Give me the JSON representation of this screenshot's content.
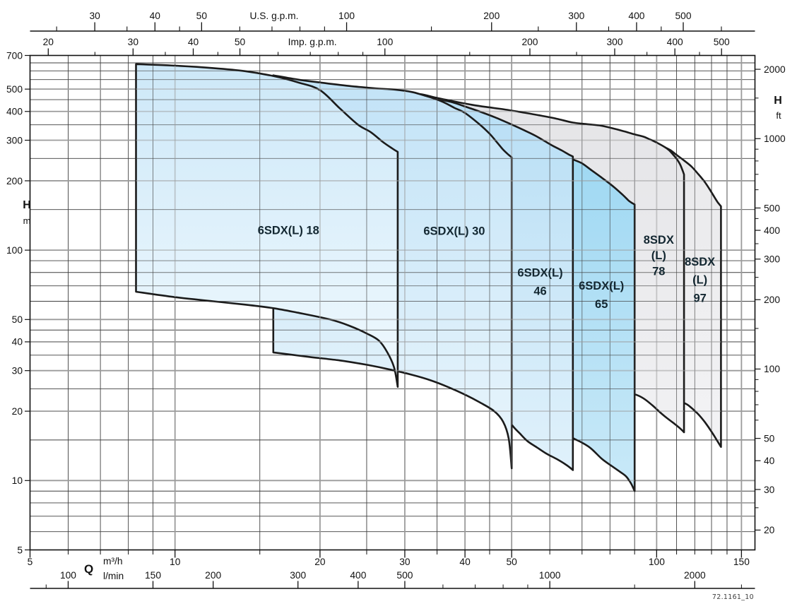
{
  "watermark": "72.1161_10",
  "colors": {
    "outline": "#1b1b1b",
    "grid_minor": "#3f3f3f",
    "grid_major": "#9b9b9b",
    "frame": "#111111",
    "axis_text": "#111111",
    "pump_label_text": "#132731",
    "watermark_text": "#3f3f3f"
  },
  "chart_data": {
    "type": "area",
    "description": "Pump operating-range envelopes on log-log axes (flow vs head)",
    "x_axis_m3h": {
      "quantity_label": "Q",
      "unit": "m³/h",
      "min": 5,
      "max": 160,
      "labeled_ticks": [
        5,
        10,
        20,
        30,
        40,
        50,
        100,
        150
      ],
      "minor_ticks": [
        6,
        7,
        8,
        9,
        15,
        25,
        35,
        45,
        60,
        70,
        80,
        90,
        110,
        120,
        130,
        140
      ],
      "major_gridlines": [
        10,
        20,
        30,
        40,
        50,
        100,
        150
      ],
      "minor_gridlines": [
        6,
        7,
        8,
        9,
        15,
        25,
        35,
        45,
        60,
        70,
        80,
        90,
        110,
        120,
        130,
        140
      ]
    },
    "x_axis_lmin": {
      "unit": "l/min",
      "labeled_ticks": [
        100,
        150,
        200,
        300,
        400,
        500,
        1000,
        2000
      ],
      "minor_ticks": [
        90,
        600,
        700,
        800,
        900,
        1500,
        2500
      ]
    },
    "x_axis_usgpm": {
      "unit": "U.S. g.p.m.",
      "labeled_ticks": [
        30,
        40,
        50,
        100,
        200,
        300,
        400,
        500
      ],
      "minor_ticks": [
        25,
        35,
        45,
        60,
        70,
        80,
        90,
        150,
        250,
        350,
        450,
        600
      ]
    },
    "x_axis_impgpm": {
      "unit": "Imp. g.p.m.",
      "labeled_ticks": [
        20,
        30,
        40,
        50,
        100,
        200,
        300,
        400,
        500
      ],
      "minor_ticks": [
        25,
        35,
        45,
        60,
        70,
        80,
        90,
        150,
        250,
        350,
        450
      ]
    },
    "y_axis_m": {
      "quantity_label": "H",
      "unit": "m",
      "min": 5,
      "max": 700,
      "labeled_ticks": [
        5,
        10,
        20,
        30,
        40,
        50,
        100,
        200,
        300,
        400,
        500,
        700
      ],
      "major_gridlines": [
        10,
        20,
        30,
        40,
        50,
        100,
        200,
        300,
        400,
        500
      ],
      "minor_gridlines": [
        6,
        7,
        8,
        9,
        15,
        25,
        35,
        45,
        60,
        70,
        80,
        90,
        150,
        250,
        350,
        450,
        550,
        600,
        650
      ]
    },
    "y_axis_ft": {
      "quantity_label": "H",
      "unit": "ft",
      "labeled_ticks": [
        20,
        30,
        40,
        50,
        100,
        200,
        300,
        400,
        500,
        1000,
        2000
      ],
      "minor_ticks": [
        25,
        60,
        70,
        80,
        90,
        150,
        250,
        350,
        450,
        600,
        700,
        800,
        900,
        1500
      ]
    },
    "series": [
      {
        "model": "8SDX(L) 97",
        "slug": "8sdx-l-97",
        "label_lines": [
          "8SDX",
          "(L)",
          "97"
        ],
        "label_q": 123,
        "label_H_lines": [
          89,
          74.5,
          62
        ],
        "fill_top": "#e8e8ea",
        "fill_bottom": "#f3f3f5",
        "flow_range_m3h": [
          35,
          136
        ],
        "top_curve_qH": [
          [
            35,
            432
          ],
          [
            40,
            420
          ],
          [
            50,
            394
          ],
          [
            60,
            368
          ],
          [
            70,
            344
          ],
          [
            80,
            322
          ],
          [
            90,
            302
          ],
          [
            96,
            291
          ],
          [
            100,
            285
          ],
          [
            103.7,
            280
          ],
          [
            107,
            271
          ],
          [
            110,
            259
          ],
          [
            114,
            245
          ],
          [
            118,
            231
          ],
          [
            122,
            214
          ],
          [
            126,
            197
          ],
          [
            129,
            183
          ],
          [
            132,
            169
          ],
          [
            134,
            161
          ],
          [
            136,
            155
          ]
        ],
        "bottom_curve_qH": [
          [
            35,
            46
          ],
          [
            45,
            39
          ],
          [
            55,
            33.8
          ],
          [
            65,
            29.8
          ],
          [
            75,
            26.8
          ],
          [
            85,
            24.8
          ],
          [
            95,
            23.3
          ],
          [
            103,
            22.5
          ],
          [
            109,
            22.1
          ],
          [
            114.6,
            21.6
          ],
          [
            118,
            20.7
          ],
          [
            122,
            19.4
          ],
          [
            126,
            17.9
          ],
          [
            130,
            16.3
          ],
          [
            133,
            15.1
          ],
          [
            136,
            14
          ]
        ]
      },
      {
        "model": "8SDX(L) 78",
        "slug": "8sdx-l-78",
        "label_lines": [
          "8SDX",
          "(L)",
          "78"
        ],
        "label_q": 101,
        "label_H_lines": [
          111,
          95,
          81
        ],
        "fill_top": "#e4e4e7",
        "fill_bottom": "#f1f1f3",
        "flow_range_m3h": [
          30,
          114
        ],
        "top_curve_qH": [
          [
            30,
            484
          ],
          [
            32.6,
            473
          ],
          [
            35,
            458
          ],
          [
            38,
            442
          ],
          [
            41,
            429
          ],
          [
            44,
            419
          ],
          [
            48,
            409
          ],
          [
            52,
            398
          ],
          [
            57,
            385
          ],
          [
            62,
            372
          ],
          [
            67,
            358
          ],
          [
            72,
            352
          ],
          [
            76.6,
            347
          ],
          [
            81,
            338
          ],
          [
            86,
            327
          ],
          [
            90,
            318
          ],
          [
            93.8,
            311
          ],
          [
            97,
            302
          ],
          [
            100,
            293
          ],
          [
            103.7,
            281
          ],
          [
            106,
            272
          ],
          [
            108,
            261
          ],
          [
            110,
            249
          ],
          [
            111.8,
            236
          ],
          [
            113,
            224
          ],
          [
            114,
            213
          ]
        ],
        "bottom_curve_qH": [
          [
            30,
            48
          ],
          [
            36,
            43
          ],
          [
            42,
            38.6
          ],
          [
            48,
            35
          ],
          [
            54,
            32
          ],
          [
            60,
            29.6
          ],
          [
            66,
            27.6
          ],
          [
            72,
            26
          ],
          [
            78,
            24.9
          ],
          [
            84,
            24.1
          ],
          [
            88,
            23.8
          ],
          [
            90.5,
            23.6
          ],
          [
            94,
            22.7
          ],
          [
            98,
            21.2
          ],
          [
            102.7,
            19.4
          ],
          [
            106,
            18.4
          ],
          [
            109,
            17.6
          ],
          [
            112,
            16.8
          ],
          [
            114,
            16.2
          ]
        ]
      },
      {
        "model": "6SDX(L) 65",
        "slug": "6sdx-l-65",
        "label_lines": [
          "6SDX(L)",
          "65"
        ],
        "label_q": 76.8,
        "label_H_lines": [
          70,
          58.3
        ],
        "fill_top": "#9cd7f2",
        "fill_bottom": "#c9e9f8",
        "flow_range_m3h": [
          40,
          90
        ],
        "top_curve_qH": [
          [
            40,
            330
          ],
          [
            45,
            314
          ],
          [
            50,
            299
          ],
          [
            55,
            284
          ],
          [
            60,
            269
          ],
          [
            63,
            259
          ],
          [
            66,
            250
          ],
          [
            67.5,
            246
          ],
          [
            70,
            238
          ],
          [
            73.3,
            222
          ],
          [
            77,
            206
          ],
          [
            80,
            194
          ],
          [
            82,
            186
          ],
          [
            85,
            174
          ],
          [
            87.5,
            164
          ],
          [
            89,
            160
          ],
          [
            90,
            158
          ]
        ],
        "bottom_curve_qH": [
          [
            40,
            26
          ],
          [
            45,
            23.5
          ],
          [
            50,
            21.3
          ],
          [
            55,
            19.4
          ],
          [
            60,
            17.8
          ],
          [
            64,
            16.3
          ],
          [
            67,
            15.3
          ],
          [
            70,
            14.6
          ],
          [
            73,
            13.8
          ],
          [
            77,
            12.4
          ],
          [
            80.5,
            11.6
          ],
          [
            84,
            10.9
          ],
          [
            86.5,
            10.4
          ],
          [
            88.5,
            9.7
          ],
          [
            90,
            9
          ]
        ]
      },
      {
        "model": "6SDX(L) 46",
        "slug": "6sdx-l-46",
        "label_lines": [
          "6SDX(L)",
          "46"
        ],
        "label_q": 57.3,
        "label_H_lines": [
          80,
          66.5
        ],
        "fill_top": "#b7def5",
        "fill_bottom": "#e0f1fb",
        "flow_range_m3h": [
          24,
          67
        ],
        "top_curve_qH": [
          [
            24,
            505
          ],
          [
            27,
            494
          ],
          [
            30,
            481
          ],
          [
            32.6,
            474
          ],
          [
            35,
            456
          ],
          [
            36,
            448
          ],
          [
            38,
            436
          ],
          [
            40.3,
            418
          ],
          [
            43,
            399
          ],
          [
            46.2,
            377
          ],
          [
            50,
            351
          ],
          [
            53,
            332
          ],
          [
            56,
            314
          ],
          [
            58.6,
            297
          ],
          [
            61,
            283
          ],
          [
            63.5,
            271
          ],
          [
            65.5,
            261
          ],
          [
            67,
            255
          ]
        ],
        "bottom_curve_qH": [
          [
            24,
            34.5
          ],
          [
            28,
            32
          ],
          [
            32,
            29.5
          ],
          [
            36,
            27
          ],
          [
            40,
            24.8
          ],
          [
            43,
            23.2
          ],
          [
            46,
            21.5
          ],
          [
            48.5,
            19.8
          ],
          [
            50,
            17.5
          ],
          [
            52,
            16
          ],
          [
            54,
            14.8
          ],
          [
            56.5,
            13.9
          ],
          [
            59,
            13.1
          ],
          [
            62,
            12.4
          ],
          [
            64.5,
            11.8
          ],
          [
            66,
            11.4
          ],
          [
            67,
            11.1
          ]
        ]
      },
      {
        "model": "6SDX(L) 30",
        "slug": "6sdx-l-30",
        "label_lines": [
          "6SDX(L) 30"
        ],
        "label_q": 38,
        "label_H_lines": [
          121
        ],
        "fill_top": "#c2e3f7",
        "fill_bottom": "#e9f5fc",
        "flow_range_m3h": [
          16,
          50
        ],
        "top_curve_qH": [
          [
            16,
            574
          ],
          [
            18,
            550
          ],
          [
            20,
            534
          ],
          [
            23,
            516
          ],
          [
            26,
            504
          ],
          [
            28.7,
            497
          ],
          [
            31,
            486
          ],
          [
            32.6,
            472
          ],
          [
            34,
            460
          ],
          [
            36,
            440
          ],
          [
            38,
            415
          ],
          [
            40,
            394
          ],
          [
            43,
            350
          ],
          [
            45,
            320
          ],
          [
            46.6,
            294
          ],
          [
            48,
            273
          ],
          [
            49.2,
            260
          ],
          [
            50,
            253
          ]
        ],
        "bottom_curve_qH": [
          [
            16,
            36
          ],
          [
            19,
            34.4
          ],
          [
            22,
            33.2
          ],
          [
            25,
            31.8
          ],
          [
            28,
            30.3
          ],
          [
            31,
            28.8
          ],
          [
            34,
            27.2
          ],
          [
            37,
            25.4
          ],
          [
            40,
            23.6
          ],
          [
            43,
            21.8
          ],
          [
            46,
            20
          ],
          [
            48,
            18
          ],
          [
            49.3,
            15.2
          ],
          [
            50,
            11.3
          ]
        ]
      },
      {
        "model": "6SDX(L) 18",
        "slug": "6sdx-l-18",
        "label_lines": [
          "6SDX(L) 18"
        ],
        "label_q": 17.2,
        "label_H_lines": [
          122
        ],
        "fill_top": "#cde8f8",
        "fill_bottom": "#f0f9fe",
        "flow_range_m3h": [
          8.3,
          29
        ],
        "top_curve_qH": [
          [
            8.3,
            642
          ],
          [
            10,
            632
          ],
          [
            12,
            617
          ],
          [
            14,
            598
          ],
          [
            16,
            570
          ],
          [
            18,
            535
          ],
          [
            20,
            495
          ],
          [
            22,
            412
          ],
          [
            24,
            350
          ],
          [
            25.5,
            325
          ],
          [
            27,
            295
          ],
          [
            28.2,
            277
          ],
          [
            29,
            267
          ]
        ],
        "bottom_curve_qH": [
          [
            8.3,
            66
          ],
          [
            10,
            62.5
          ],
          [
            12,
            60
          ],
          [
            14,
            58
          ],
          [
            16,
            56
          ],
          [
            18,
            53.5
          ],
          [
            21,
            50
          ],
          [
            23,
            47
          ],
          [
            25,
            43.5
          ],
          [
            26.5,
            40.5
          ],
          [
            27.6,
            36
          ],
          [
            28.5,
            31
          ],
          [
            29,
            25.5
          ]
        ]
      }
    ]
  }
}
